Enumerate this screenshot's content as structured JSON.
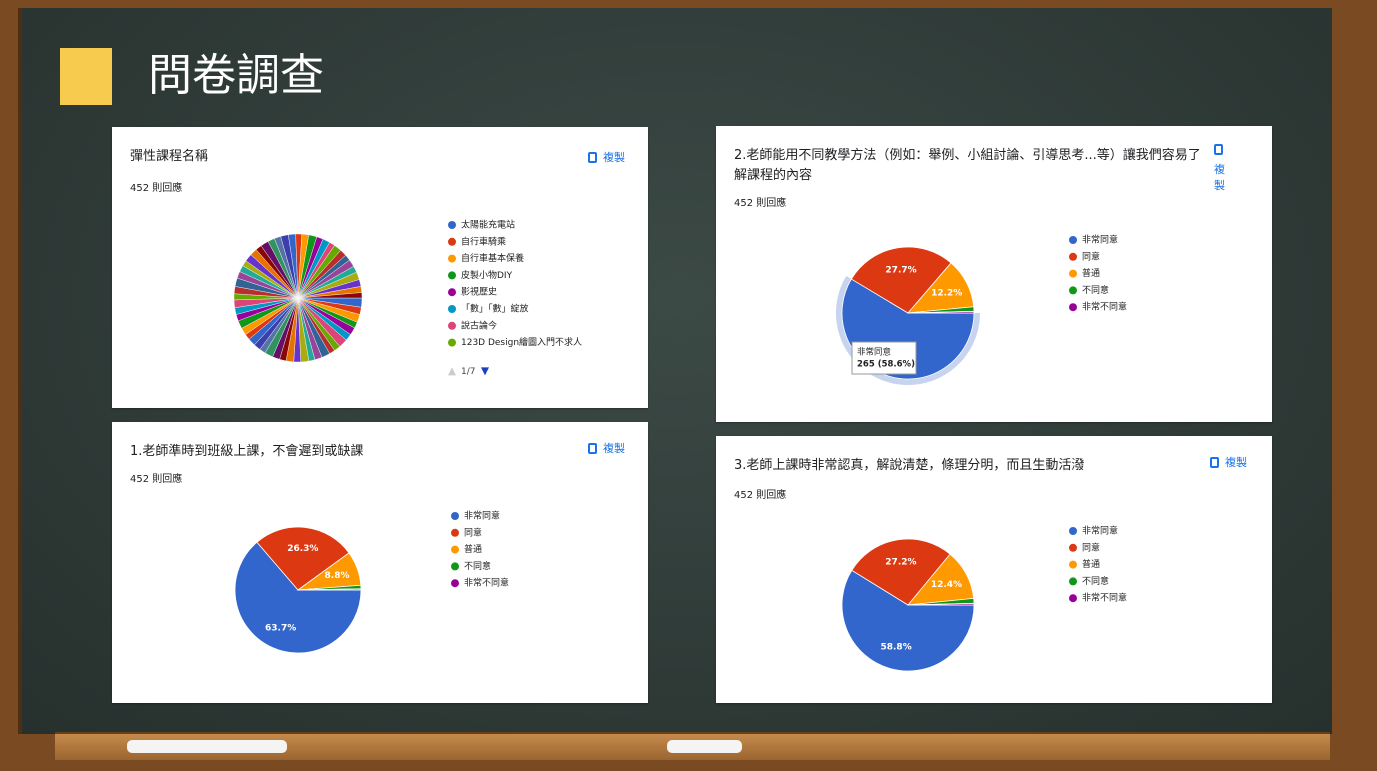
{
  "header": {
    "title": "問卷調查"
  },
  "chart_data": [
    {
      "type": "pie",
      "title": "彈性課程名稱",
      "subtitle": "452 則回應",
      "action": "複製",
      "pager": "1/7",
      "categories": [
        "太陽能充電站",
        "自行車騎乘",
        "自行車基本保養",
        "皮製小物DIY",
        "影視歷史",
        "「數」「數」綻放",
        "說古論今",
        "123D Design繪圖入門不求人",
        null,
        null,
        null,
        null,
        null,
        null,
        null,
        null,
        null,
        null,
        null,
        null,
        null,
        null,
        null,
        null,
        null,
        null,
        null,
        null,
        null,
        null,
        null,
        null,
        null,
        null,
        null,
        null,
        null,
        null,
        null,
        null,
        null,
        null,
        null,
        null,
        null,
        null,
        null,
        null,
        null,
        null,
        null,
        null,
        null,
        null,
        null,
        null
      ],
      "values": [
        2.4,
        1.9,
        2.1,
        1.6,
        2.0,
        1.8,
        2.3,
        1.7,
        1.5,
        2.2,
        1.9,
        1.6,
        2.1,
        1.8,
        2.0,
        1.7,
        1.9,
        2.2,
        1.6,
        1.8,
        2.0,
        1.5,
        1.9,
        2.1,
        1.7,
        1.8,
        2.0,
        1.6,
        1.9,
        2.2,
        1.8,
        1.7,
        1.5,
        2.0,
        1.9,
        1.6,
        2.1,
        1.8,
        1.7,
        2.0,
        1.9,
        1.6,
        1.8,
        2.1,
        1.7,
        1.9,
        1.5,
        2.0,
        1.8,
        1.6,
        1.9,
        1.7,
        2.0,
        1.8,
        1.6,
        1.4
      ],
      "colors": [
        "#3366cc",
        "#dc3912",
        "#ff9900",
        "#109618",
        "#990099",
        "#0099c6",
        "#dd4477",
        "#66aa00",
        "#b82e2e",
        "#316395",
        "#994499",
        "#22aa99",
        "#aaaa11",
        "#6633cc",
        "#e67300",
        "#8b0707",
        "#651067",
        "#329262",
        "#5574a6",
        "#3b3eac"
      ]
    },
    {
      "type": "pie",
      "title": "1.老師準時到班級上課，不會遲到或缺課",
      "subtitle": "452 則回應",
      "action": "複製",
      "categories": [
        "非常同意",
        "同意",
        "普通",
        "不同意",
        "非常不同意"
      ],
      "values": [
        63.7,
        26.3,
        8.8,
        0.9,
        0.3
      ],
      "value_labels": [
        "63.7%",
        "26.3%",
        "8.8%",
        null,
        null
      ],
      "colors": [
        "#3366cc",
        "#dc3912",
        "#ff9900",
        "#109618",
        "#990099"
      ]
    },
    {
      "type": "pie",
      "title": "2.老師能用不同教學方法（例如：舉例、小組討論、引導思考...等）讓我們容易了解課程的內容",
      "subtitle": "452 則回應",
      "action": "複製",
      "categories": [
        "非常同意",
        "同意",
        "普通",
        "不同意",
        "非常不同意"
      ],
      "values": [
        58.6,
        27.7,
        12.2,
        1.1,
        0.4
      ],
      "value_labels": [
        null,
        "27.7%",
        "12.2%",
        null,
        null
      ],
      "colors": [
        "#3366cc",
        "#dc3912",
        "#ff9900",
        "#109618",
        "#990099"
      ],
      "tooltip": {
        "index": 0,
        "text": "265 (58.6%)"
      }
    },
    {
      "type": "pie",
      "title": "3.老師上課時非常認真，解說清楚，條理分明，而且生動活潑",
      "subtitle": "452 則回應",
      "action": "複製",
      "categories": [
        "非常同意",
        "同意",
        "普通",
        "不同意",
        "非常不同意"
      ],
      "values": [
        58.8,
        27.2,
        12.4,
        1.2,
        0.4
      ],
      "value_labels": [
        "58.8%",
        "27.2%",
        "12.4%",
        null,
        null
      ],
      "colors": [
        "#3366cc",
        "#dc3912",
        "#ff9900",
        "#109618",
        "#990099"
      ]
    }
  ]
}
